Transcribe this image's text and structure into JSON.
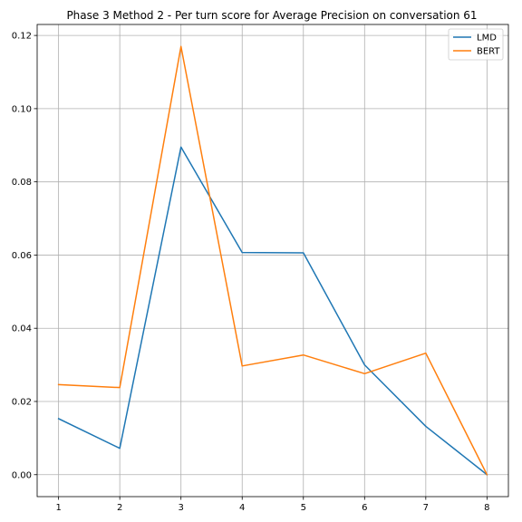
{
  "chart_data": {
    "type": "line",
    "title": "Phase 3 Method 2 - Per turn score for Average Precision on conversation 61",
    "xlabel": "",
    "ylabel": "",
    "x": [
      1,
      2,
      3,
      4,
      5,
      6,
      7,
      8
    ],
    "xticks": [
      "1",
      "2",
      "3",
      "4",
      "5",
      "6",
      "7",
      "8"
    ],
    "yticks": [
      "0.00",
      "0.02",
      "0.04",
      "0.06",
      "0.08",
      "0.10",
      "0.12"
    ],
    "ylim": [
      -0.006,
      0.123
    ],
    "xlim": [
      0.65,
      8.35
    ],
    "grid": true,
    "legend_position": "top-right",
    "series": [
      {
        "name": "LMD",
        "color": "#1f77b4",
        "values": [
          0.0153,
          0.0072,
          0.0895,
          0.0607,
          0.0606,
          0.03,
          0.0132,
          0.0
        ]
      },
      {
        "name": "BERT",
        "color": "#ff7f0e",
        "values": [
          0.0246,
          0.0238,
          0.117,
          0.0297,
          0.0327,
          0.0276,
          0.0332,
          0.0
        ]
      }
    ]
  }
}
